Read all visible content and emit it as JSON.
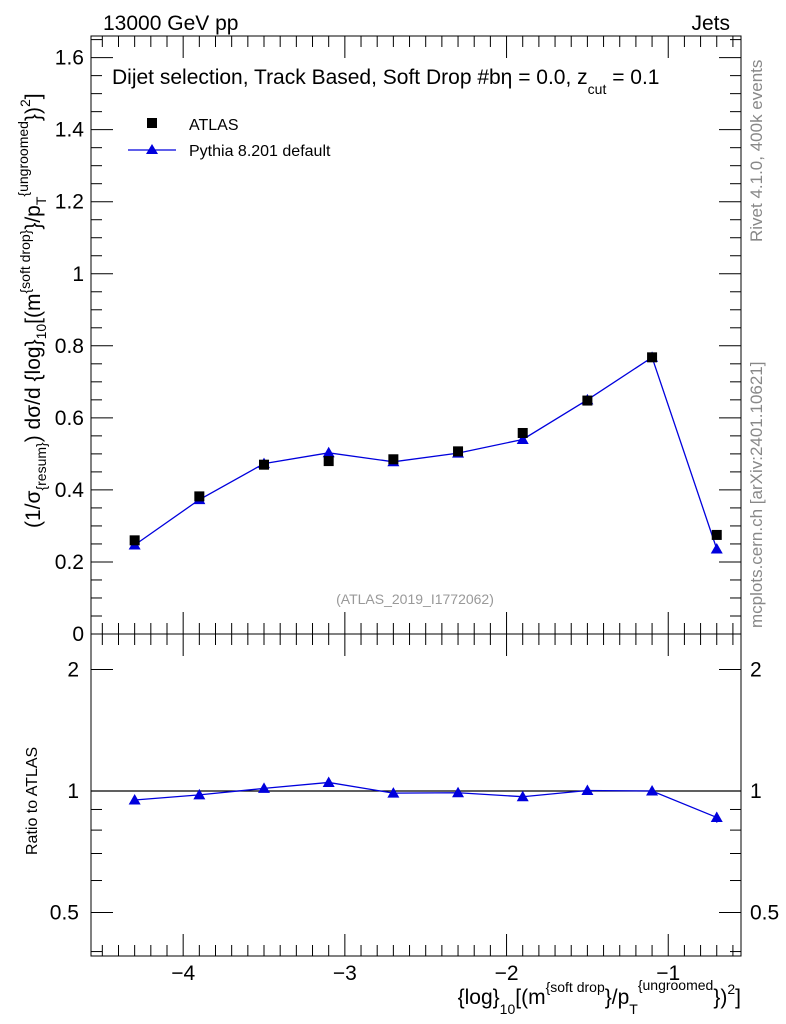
{
  "header": {
    "left": "13000 GeV pp",
    "right": "Jets",
    "description": "Dijet selection, Track Based, Soft Drop #bη = 0.0, z",
    "desc_sub": "cut",
    "desc_tail": " = 0.1"
  },
  "side_labels": {
    "rivet": "Rivet 4.1.0,  400k events",
    "mcplots": "mcplots.cern.ch [arXiv:2401.10621]"
  },
  "ref_label": "(ATLAS_2019_I1772062)",
  "colors": {
    "atlas": "#000000",
    "pythia": "#0000dd",
    "axis": "#000000",
    "side": "#888888"
  },
  "chart_data": [
    {
      "type": "scatter",
      "name": "main",
      "ylabel": "(1/σ_{resum}) dσ/d {log}_{10}[(m^{soft drop}/p_T^{ungroomed})^2]",
      "ylim": [
        0,
        1.66
      ],
      "xlim": [
        -4.57,
        -0.55
      ],
      "yticks": [
        0,
        0.2,
        0.4,
        0.6,
        0.8,
        1,
        1.2,
        1.4,
        1.6
      ],
      "ytick_labels": [
        "0",
        "0.2",
        "0.4",
        "0.6",
        "0.8",
        "1",
        "1.2",
        "1.4",
        "1.6"
      ],
      "series": [
        {
          "name": "ATLAS",
          "marker": "square",
          "x": [
            -4.3,
            -3.9,
            -3.5,
            -3.1,
            -2.7,
            -2.3,
            -1.9,
            -1.5,
            -1.1,
            -0.7
          ],
          "y": [
            0.26,
            0.382,
            0.47,
            0.48,
            0.485,
            0.507,
            0.558,
            0.648,
            0.768,
            0.275
          ],
          "yerr": [
            0.005,
            0.006,
            0.007,
            0.007,
            0.006,
            0.006,
            0.007,
            0.008,
            0.012,
            0.005
          ]
        },
        {
          "name": "Pythia 8.201 default",
          "marker": "triangle",
          "x": [
            -4.3,
            -3.9,
            -3.5,
            -3.1,
            -2.7,
            -2.3,
            -1.9,
            -1.5,
            -1.1,
            -0.7
          ],
          "y": [
            0.247,
            0.373,
            0.473,
            0.503,
            0.478,
            0.502,
            0.54,
            0.65,
            0.768,
            0.236
          ],
          "yerr": [
            0.004,
            0.005,
            0.006,
            0.012,
            0.005,
            0.006,
            0.006,
            0.007,
            0.012,
            0.005
          ]
        }
      ]
    },
    {
      "type": "line",
      "name": "ratio",
      "ylabel": "Ratio to ATLAS",
      "xlabel": "{log}_{10}[(m^{soft drop}/p_T^{ungroomed})^2]",
      "ylim": [
        0.39,
        2.45
      ],
      "yscale": "log",
      "xlim": [
        -4.57,
        -0.55
      ],
      "yticks": [
        0.5,
        1,
        2
      ],
      "ytick_labels": [
        "0.5",
        "1",
        "2"
      ],
      "xticks": [
        -4,
        -3,
        -2,
        -1
      ],
      "xtick_labels": [
        "−4",
        "−3",
        "−2",
        "−1"
      ],
      "series": [
        {
          "name": "Pythia 8.201 default",
          "x": [
            -4.3,
            -3.9,
            -3.5,
            -3.1,
            -2.7,
            -2.3,
            -1.9,
            -1.5,
            -1.1,
            -0.7
          ],
          "y": [
            0.95,
            0.978,
            1.015,
            1.05,
            0.988,
            0.99,
            0.968,
            1.003,
            1.0,
            0.86
          ],
          "yerr": [
            0.02,
            0.015,
            0.015,
            0.015,
            0.012,
            0.012,
            0.012,
            0.012,
            0.015,
            0.025
          ]
        }
      ]
    }
  ]
}
